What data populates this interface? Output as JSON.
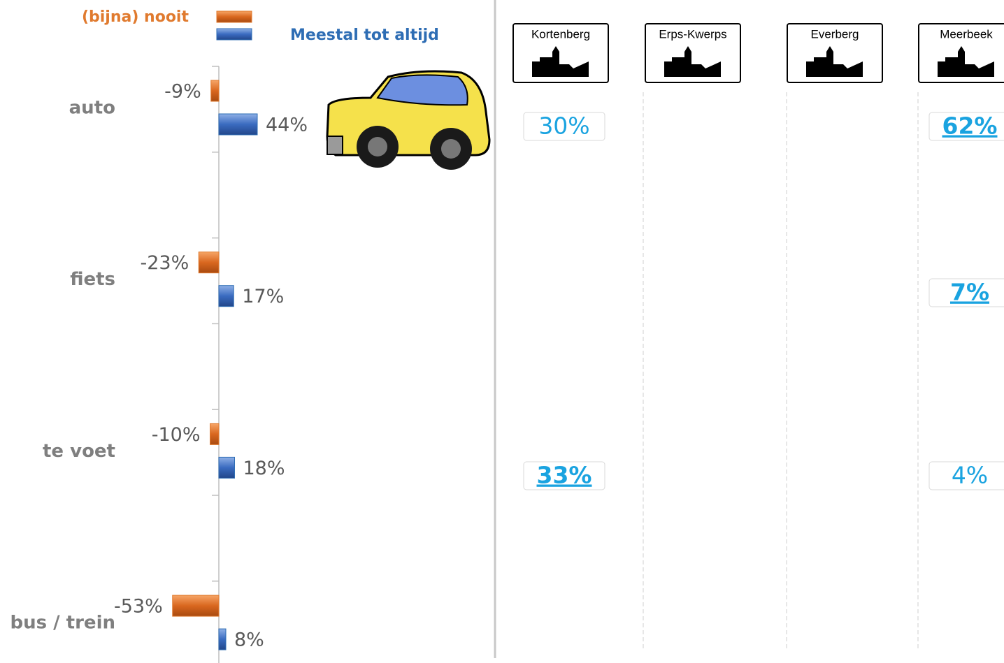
{
  "chart_data": {
    "type": "bar",
    "categories": [
      "auto",
      "fiets",
      "te voet",
      "bus / trein"
    ],
    "series": [
      {
        "name": "(bijna)  nooit",
        "color": "#e07a2e",
        "values": [
          -9,
          -23,
          -10,
          -53
        ],
        "value_labels": [
          "-9%",
          "-23%",
          "-10%",
          "-53%"
        ]
      },
      {
        "name": "Meestal  tot  altijd",
        "color": "#2e6db4",
        "values": [
          44,
          17,
          18,
          8
        ],
        "value_labels": [
          "44%",
          "17%",
          "18%",
          "8%"
        ]
      }
    ]
  },
  "towns": [
    {
      "name": "Kortenberg",
      "figures": [
        {
          "label": "30%",
          "emphasis": false
        },
        null,
        {
          "label": "33%",
          "emphasis": true
        }
      ]
    },
    {
      "name": "Erps-Kwerps",
      "figures": [
        null,
        null,
        null
      ]
    },
    {
      "name": "Everberg",
      "figures": [
        null,
        null,
        null
      ]
    },
    {
      "name": "Meerbeek",
      "figures": [
        {
          "label": "62%",
          "emphasis": true
        },
        {
          "label": "7%",
          "emphasis": true
        },
        {
          "label": "4%",
          "emphasis": false
        }
      ]
    }
  ]
}
